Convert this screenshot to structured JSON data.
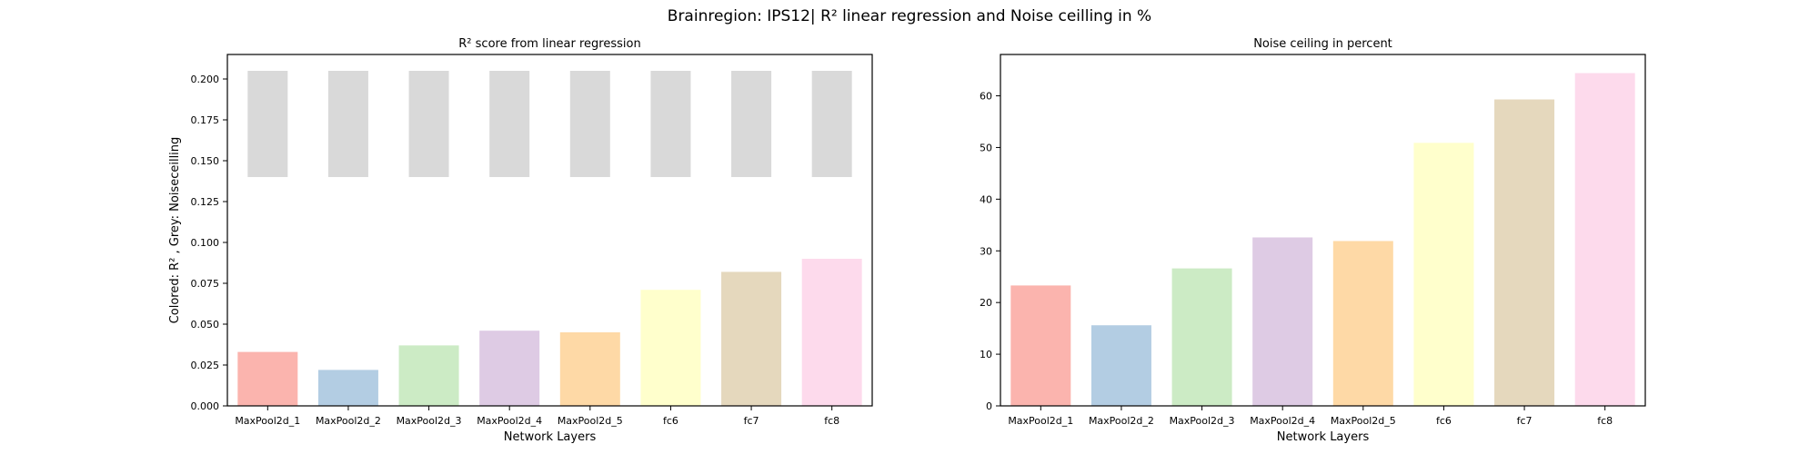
{
  "figure": {
    "title": "Brainregion: IPS12| R² linear regression and Noise ceilling in %"
  },
  "colors": {
    "bars": [
      "#fbb4ae",
      "#b3cde3",
      "#ccebc5",
      "#decbe4",
      "#fed9a6",
      "#ffffcc",
      "#e5d8bd",
      "#fddaec"
    ],
    "noise_ceiling_grey": "#d9d9d9",
    "axis": "#000000"
  },
  "chart_data": [
    {
      "type": "bar",
      "title": "R² score from linear regression",
      "xlabel": "Network Layers",
      "ylabel": "Colored: R² , Grey: Noiseceilling",
      "categories": [
        "MaxPool2d_1",
        "MaxPool2d_2",
        "MaxPool2d_3",
        "MaxPool2d_4",
        "MaxPool2d_5",
        "fc6",
        "fc7",
        "fc8"
      ],
      "series": [
        {
          "values": [
            0.033,
            0.022,
            0.037,
            0.046,
            0.045,
            0.071,
            0.082,
            0.09
          ]
        }
      ],
      "noise_ceiling": {
        "lower": 0.14,
        "upper": 0.205
      },
      "ylim": [
        0,
        0.215
      ],
      "yticks": [
        "0.000",
        "0.025",
        "0.050",
        "0.075",
        "0.100",
        "0.125",
        "0.150",
        "0.175",
        "0.200"
      ],
      "grid": false
    },
    {
      "type": "bar",
      "title": "Noise ceiling in percent",
      "xlabel": "Network Layers",
      "ylabel": "",
      "categories": [
        "MaxPool2d_1",
        "MaxPool2d_2",
        "MaxPool2d_3",
        "MaxPool2d_4",
        "MaxPool2d_5",
        "fc6",
        "fc7",
        "fc8"
      ],
      "series": [
        {
          "values": [
            23.3,
            15.6,
            26.6,
            32.6,
            31.9,
            50.9,
            59.3,
            64.4
          ]
        }
      ],
      "ylim": [
        0,
        68
      ],
      "yticks": [
        "0",
        "10",
        "20",
        "30",
        "40",
        "50",
        "60"
      ],
      "grid": false
    }
  ]
}
